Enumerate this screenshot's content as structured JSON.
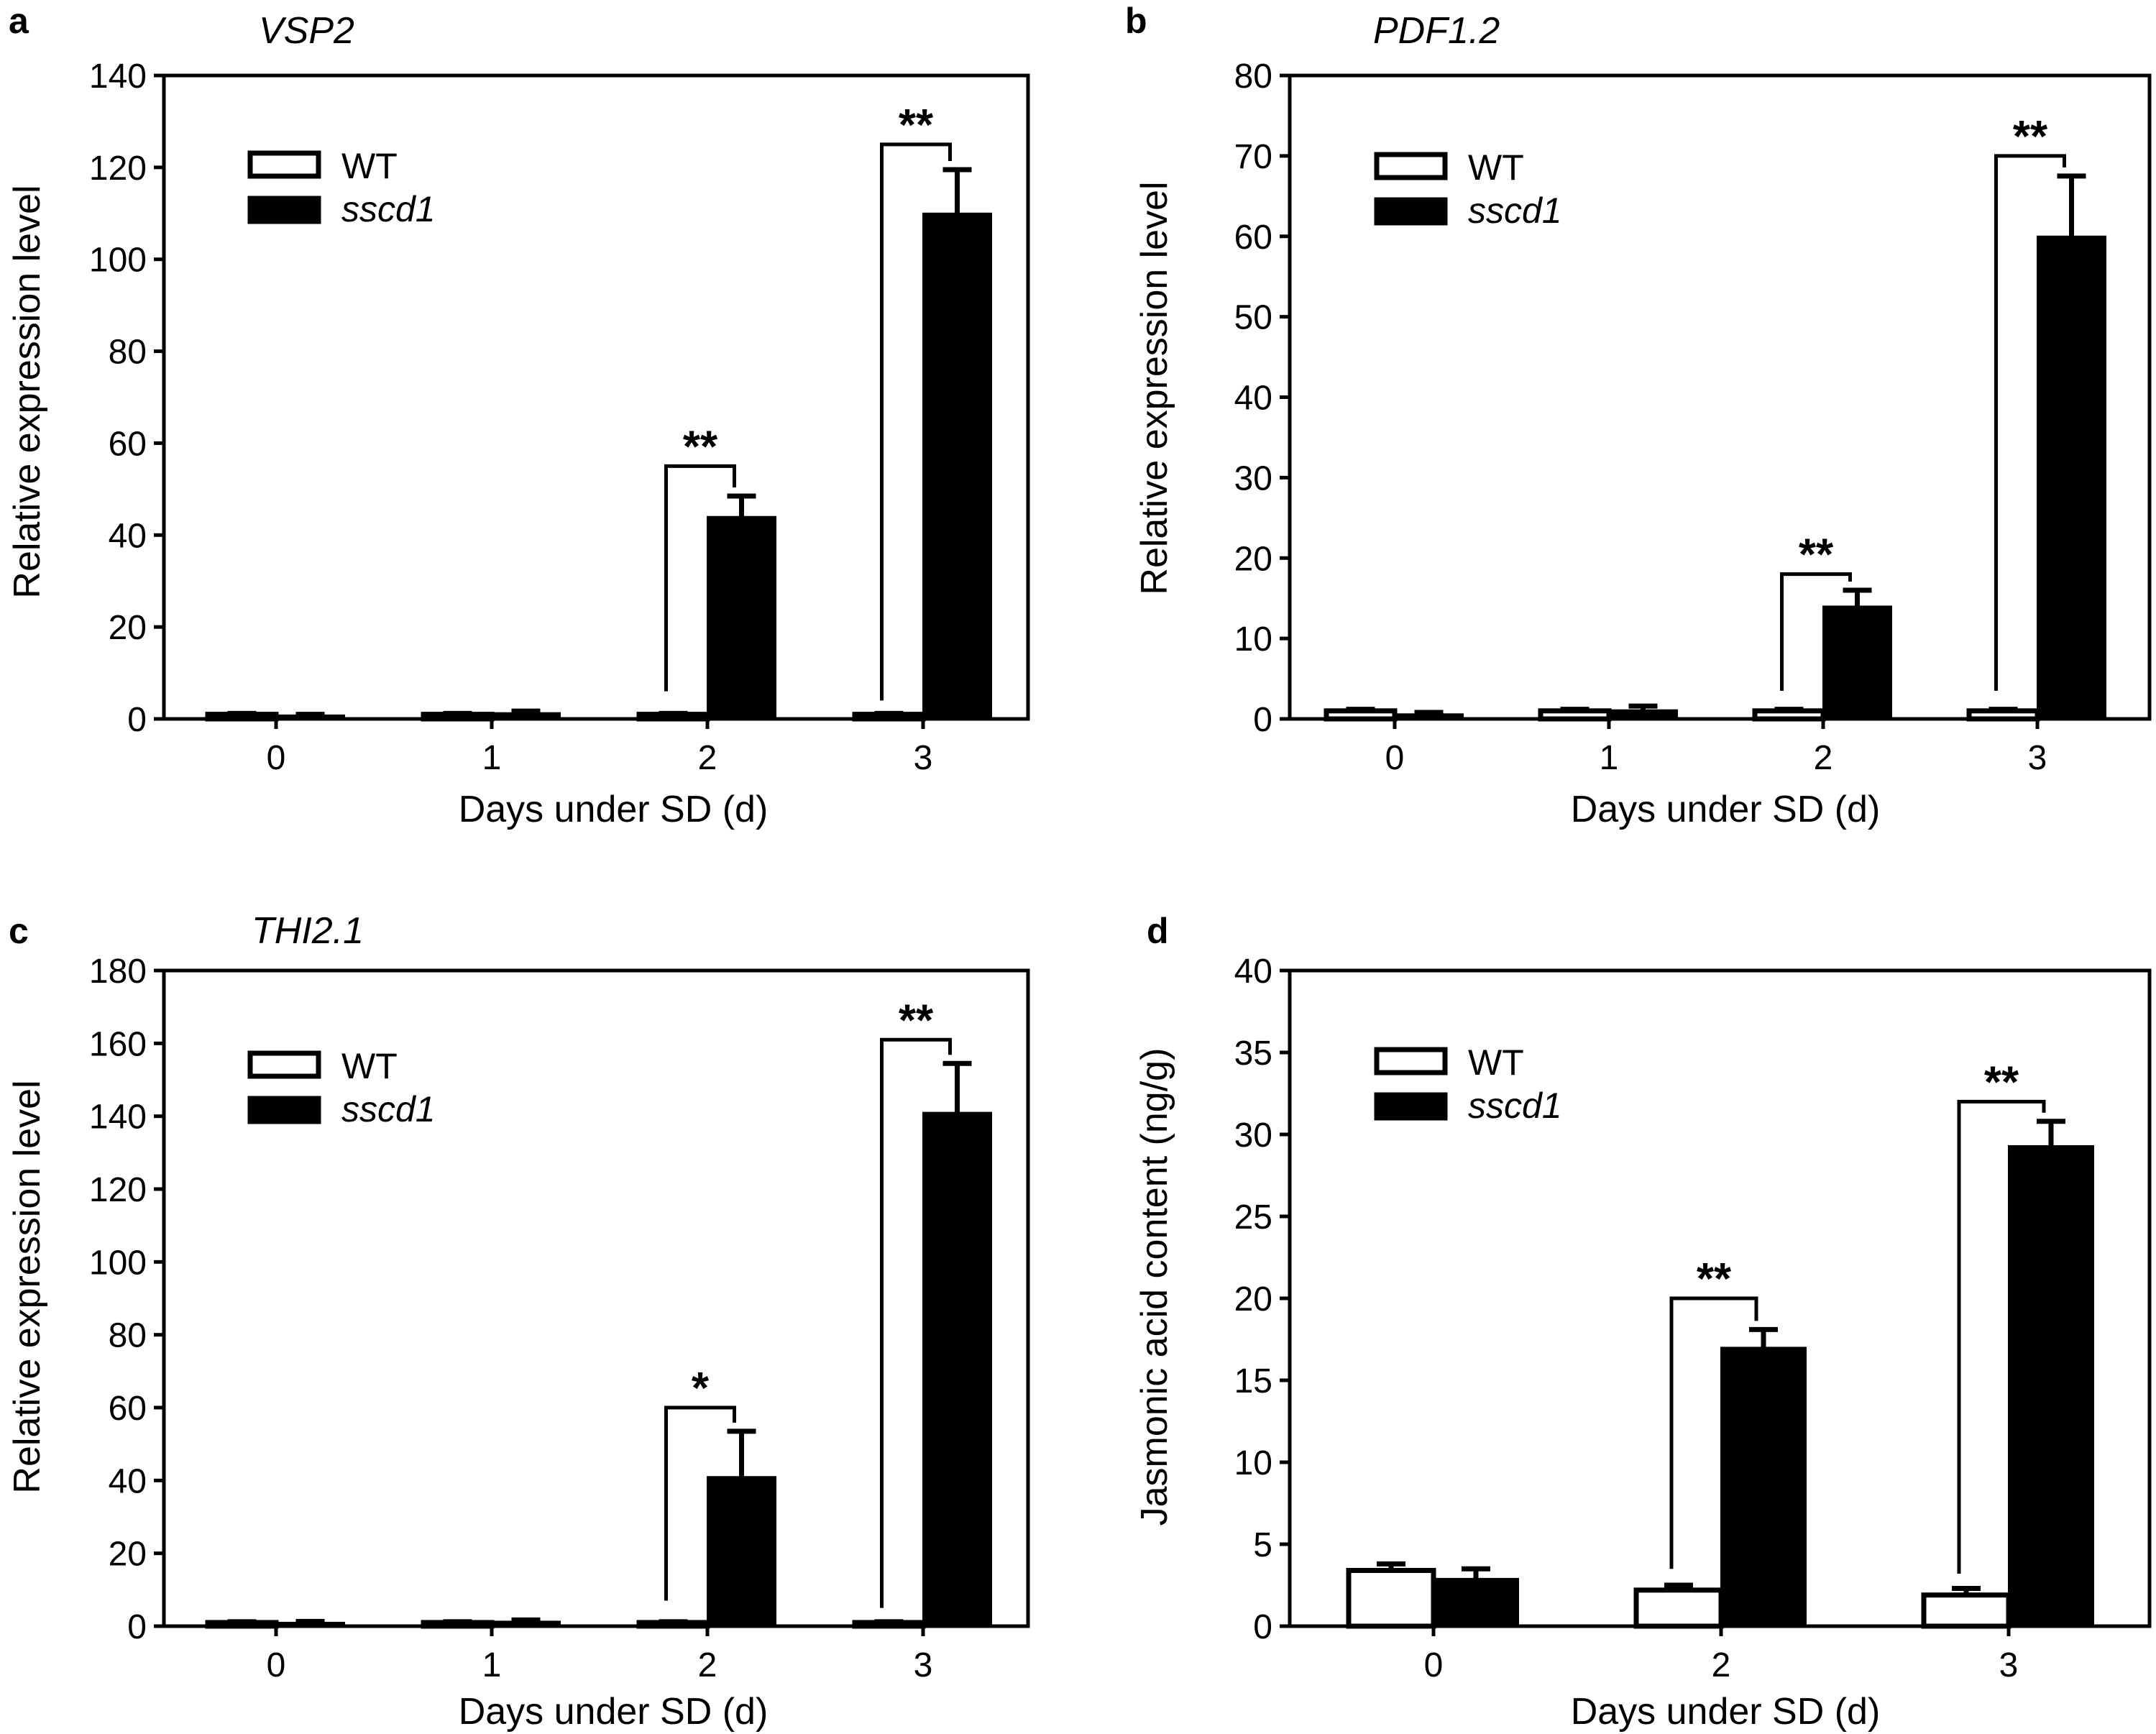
{
  "chart_data": [
    {
      "panel": "a",
      "type": "bar",
      "title": "VSP2",
      "xlabel": "Days under SD (d)",
      "ylabel": "Relative expression level",
      "categories": [
        "0",
        "1",
        "2",
        "3"
      ],
      "ylim": [
        0,
        140
      ],
      "yticks": [
        "0",
        "20",
        "40",
        "60",
        "80",
        "100",
        "120",
        "140"
      ],
      "legend": {
        "position": "top-left",
        "entries": [
          "WT",
          "sscd1"
        ]
      },
      "series": [
        {
          "name": "WT",
          "color": "#ffffff",
          "values": [
            1,
            1,
            1,
            1
          ],
          "errors": [
            0.2,
            0.2,
            0.2,
            0.2
          ]
        },
        {
          "name": "sscd1",
          "color": "#000000",
          "values": [
            0.8,
            1.3,
            44,
            110
          ],
          "errors": [
            0.2,
            0.4,
            4.5,
            9.5
          ]
        }
      ],
      "significance": [
        {
          "category": "2",
          "label": "**",
          "bracket_low": 6,
          "bracket_high": 55
        },
        {
          "category": "3",
          "label": "**",
          "bracket_low": 4,
          "bracket_high": 125
        }
      ]
    },
    {
      "panel": "b",
      "type": "bar",
      "title": "PDF1.2",
      "xlabel": "Days under SD (d)",
      "ylabel": "Relative expression level",
      "categories": [
        "0",
        "1",
        "2",
        "3"
      ],
      "ylim": [
        0,
        80
      ],
      "yticks": [
        "0",
        "10",
        "20",
        "30",
        "40",
        "50",
        "60",
        "70",
        "80"
      ],
      "legend": {
        "position": "top-left",
        "entries": [
          "WT",
          "sscd1"
        ]
      },
      "series": [
        {
          "name": "WT",
          "color": "#ffffff",
          "values": [
            1,
            1,
            1,
            1
          ],
          "errors": [
            0.2,
            0.2,
            0.2,
            0.2
          ]
        },
        {
          "name": "sscd1",
          "color": "#000000",
          "values": [
            0.6,
            1.1,
            14,
            60
          ],
          "errors": [
            0.2,
            0.5,
            2,
            7.5
          ]
        }
      ],
      "significance": [
        {
          "category": "2",
          "label": "**",
          "bracket_low": 3.5,
          "bracket_high": 18
        },
        {
          "category": "3",
          "label": "**",
          "bracket_low": 3.5,
          "bracket_high": 70
        }
      ]
    },
    {
      "panel": "c",
      "type": "bar",
      "title": "THI2.1",
      "xlabel": "Days under SD (d)",
      "ylabel": "Relative expression level",
      "categories": [
        "0",
        "1",
        "2",
        "3"
      ],
      "ylim": [
        0,
        180
      ],
      "yticks": [
        "0",
        "20",
        "40",
        "60",
        "80",
        "100",
        "120",
        "140",
        "160",
        "180"
      ],
      "legend": {
        "position": "top-left",
        "entries": [
          "WT",
          "sscd1"
        ]
      },
      "series": [
        {
          "name": "WT",
          "color": "#ffffff",
          "values": [
            1,
            1,
            1,
            1
          ],
          "errors": [
            0.2,
            0.2,
            0.2,
            0.2
          ]
        },
        {
          "name": "sscd1",
          "color": "#000000",
          "values": [
            1,
            1.3,
            41,
            141
          ],
          "errors": [
            0.3,
            0.4,
            12.5,
            13.5
          ]
        }
      ],
      "significance": [
        {
          "category": "2",
          "label": "*",
          "bracket_low": 7,
          "bracket_high": 60
        },
        {
          "category": "3",
          "label": "**",
          "bracket_low": 5,
          "bracket_high": 161
        }
      ]
    },
    {
      "panel": "d",
      "type": "bar",
      "title": "",
      "xlabel": "Days under SD (d)",
      "ylabel": "Jasmonic acid content (ng/g)",
      "categories": [
        "0",
        "2",
        "3"
      ],
      "ylim": [
        0,
        40
      ],
      "yticks": [
        "0",
        "5",
        "10",
        "15",
        "20",
        "25",
        "30",
        "35",
        "40"
      ],
      "legend": {
        "position": "top-left",
        "entries": [
          "WT",
          "sscd1"
        ]
      },
      "series": [
        {
          "name": "WT",
          "color": "#ffffff",
          "values": [
            3.4,
            2.2,
            1.9
          ],
          "errors": [
            0.4,
            0.3,
            0.4
          ]
        },
        {
          "name": "sscd1",
          "color": "#000000",
          "values": [
            2.9,
            17,
            29.3
          ],
          "errors": [
            0.6,
            1.1,
            1.5
          ]
        }
      ],
      "significance": [
        {
          "category": "2",
          "label": "**",
          "bracket_low": 3.5,
          "bracket_high": 20
        },
        {
          "category": "3",
          "label": "**",
          "bracket_low": 3.2,
          "bracket_high": 32
        }
      ]
    }
  ]
}
